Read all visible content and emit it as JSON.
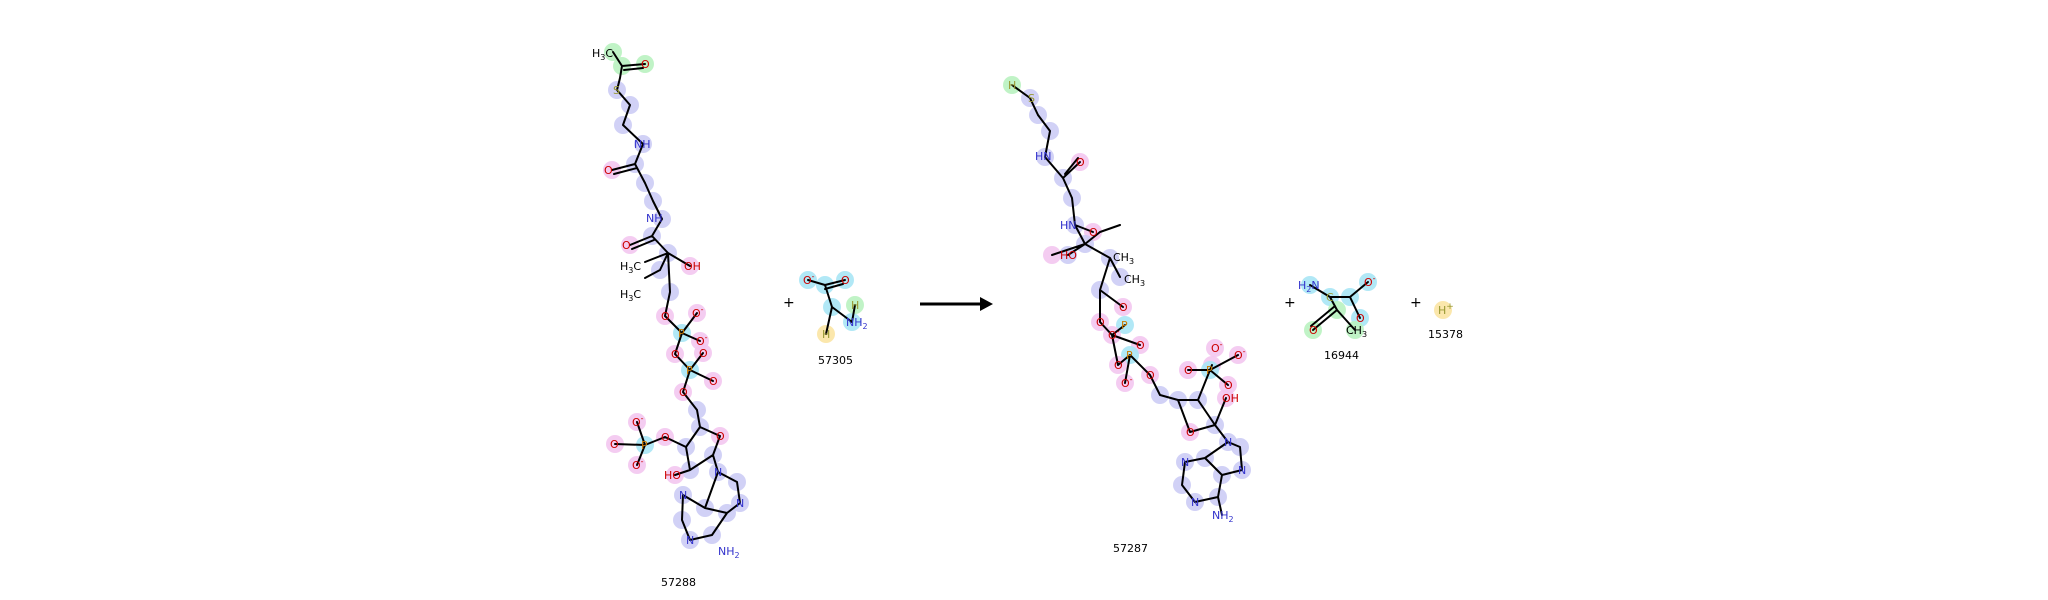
{
  "colors": {
    "nitrogen": "#3333cc",
    "oxygen": "#cc0000",
    "phosphorus": "#cc7a00",
    "sulfur": "#999933",
    "carbon": "#000000"
  },
  "reaction": {
    "operators": [
      "+",
      "+",
      "+"
    ],
    "reactants": [
      {
        "id": "57288",
        "label": "57288"
      },
      {
        "id": "57305",
        "label": "57305"
      }
    ],
    "products": [
      {
        "id": "57287",
        "label": "57287"
      },
      {
        "id": "16944",
        "label": "16944"
      },
      {
        "id": "15378",
        "label": "15378"
      }
    ],
    "proton_symbol": "H",
    "proton_charge": "+"
  }
}
